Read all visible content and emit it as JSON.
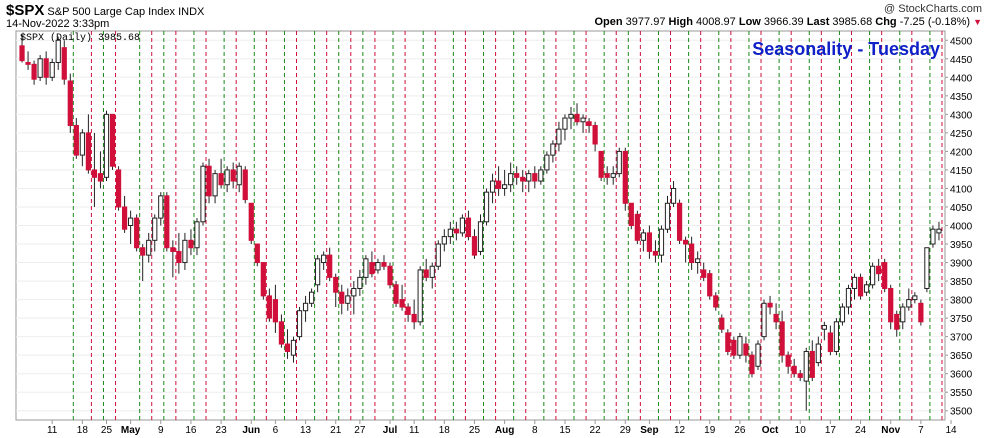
{
  "header": {
    "symbol": "$SPX",
    "name": "S&P 500 Large Cap Index",
    "exchange": "INDX",
    "datetime": "14-Nov-2022 3:33pm",
    "watermark": "@ StockCharts.com",
    "open_label": "Open",
    "open": "3977.97",
    "high_label": "High",
    "high": "4008.97",
    "low_label": "Low",
    "low": "3966.39",
    "last_label": "Last",
    "last": "3985.68",
    "chg_label": "Chg",
    "chg": "-7.25 (-0.18%)"
  },
  "colors": {
    "up_fill": "#ffffff",
    "down_fill": "#d0103a",
    "black_candle": "#000000",
    "green_line": "#1a8a1a",
    "red_line": "#d0103a",
    "title": "#1020c8"
  },
  "chart_data": {
    "type": "candlestick",
    "title": "Seasonality - Tuesday",
    "legend": "$SPX (Daily) 3985.68",
    "y_ticks": [
      3500,
      3550,
      3600,
      3650,
      3700,
      3750,
      3800,
      3850,
      3900,
      3950,
      4000,
      4050,
      4100,
      4150,
      4200,
      4250,
      4300,
      4350,
      4400,
      4450,
      4500
    ],
    "ylim": [
      3475,
      4525
    ],
    "x_tick_labels": [
      "11",
      "18",
      "25",
      "May",
      "9",
      "16",
      "23",
      "Jun",
      "6",
      "13",
      "21",
      "27",
      "Jul",
      "11",
      "18",
      "25",
      "Aug",
      "8",
      "15",
      "22",
      "29",
      "Sep",
      "12",
      "19",
      "26",
      "Oct",
      "10",
      "17",
      "24",
      "Nov",
      "7",
      "14"
    ],
    "x_tick_positions": [
      5,
      10,
      14,
      18,
      23,
      28,
      33,
      38,
      42,
      47,
      52,
      56,
      61,
      65,
      70,
      75,
      80,
      85,
      90,
      95,
      100,
      104,
      109,
      114,
      119,
      124,
      129,
      134,
      139,
      144,
      149,
      154
    ],
    "bold_labels": [
      "May",
      "Jun",
      "Jul",
      "Aug",
      "Sep",
      "Oct",
      "Nov"
    ],
    "grid": true,
    "green_dashed_at": [
      9,
      14,
      20,
      24,
      29,
      34,
      39,
      44,
      49,
      53,
      57,
      62,
      67,
      72,
      77,
      82,
      87,
      92,
      97,
      101,
      106,
      111,
      116,
      121,
      126,
      131,
      136,
      141,
      146,
      151
    ],
    "red_dashed_at": [
      12,
      16,
      22,
      26,
      31,
      36,
      41,
      46,
      51,
      55,
      59,
      64,
      69,
      74,
      79,
      84,
      89,
      94,
      99,
      103,
      108,
      113,
      118,
      123,
      128,
      133,
      138,
      143,
      148,
      153
    ],
    "candles": [
      {
        "o": 4485,
        "h": 4515,
        "l": 4440,
        "c": 4445
      },
      {
        "o": 4440,
        "h": 4470,
        "l": 4420,
        "c": 4435
      },
      {
        "o": 4435,
        "h": 4445,
        "l": 4380,
        "c": 4395
      },
      {
        "o": 4400,
        "h": 4460,
        "l": 4390,
        "c": 4450
      },
      {
        "o": 4450,
        "h": 4470,
        "l": 4380,
        "c": 4400
      },
      {
        "o": 4400,
        "h": 4450,
        "l": 4390,
        "c": 4440
      },
      {
        "o": 4440,
        "h": 4510,
        "l": 4420,
        "c": 4500
      },
      {
        "o": 4480,
        "h": 4500,
        "l": 4380,
        "c": 4395
      },
      {
        "o": 4390,
        "h": 4410,
        "l": 4250,
        "c": 4270
      },
      {
        "o": 4270,
        "h": 4290,
        "l": 4180,
        "c": 4190
      },
      {
        "o": 4190,
        "h": 4260,
        "l": 4160,
        "c": 4250
      },
      {
        "o": 4250,
        "h": 4300,
        "l": 4140,
        "c": 4150
      },
      {
        "o": 4150,
        "h": 4250,
        "l": 4050,
        "c": 4130
      },
      {
        "o": 4140,
        "h": 4200,
        "l": 4100,
        "c": 4120
      },
      {
        "o": 4130,
        "h": 4310,
        "l": 4120,
        "c": 4300
      },
      {
        "o": 4300,
        "h": 4300,
        "l": 4150,
        "c": 4160
      },
      {
        "o": 4150,
        "h": 4160,
        "l": 4040,
        "c": 4050
      },
      {
        "o": 4050,
        "h": 4080,
        "l": 3980,
        "c": 3990
      },
      {
        "o": 4000,
        "h": 4040,
        "l": 3950,
        "c": 4020
      },
      {
        "o": 4020,
        "h": 4030,
        "l": 3930,
        "c": 3940
      },
      {
        "o": 3940,
        "h": 3950,
        "l": 3850,
        "c": 3920
      },
      {
        "o": 3920,
        "h": 3980,
        "l": 3900,
        "c": 3960
      },
      {
        "o": 3960,
        "h": 4030,
        "l": 3930,
        "c": 4020
      },
      {
        "o": 4020,
        "h": 4090,
        "l": 4000,
        "c": 4080
      },
      {
        "o": 4080,
        "h": 4090,
        "l": 3930,
        "c": 3940
      },
      {
        "o": 3940,
        "h": 3960,
        "l": 3860,
        "c": 3930
      },
      {
        "o": 3930,
        "h": 3980,
        "l": 3870,
        "c": 3900
      },
      {
        "o": 3900,
        "h": 3980,
        "l": 3880,
        "c": 3960
      },
      {
        "o": 3960,
        "h": 3990,
        "l": 3920,
        "c": 3940
      },
      {
        "o": 3940,
        "h": 4020,
        "l": 3920,
        "c": 4010
      },
      {
        "o": 4010,
        "h": 4170,
        "l": 4000,
        "c": 4160
      },
      {
        "o": 4160,
        "h": 4180,
        "l": 4060,
        "c": 4080
      },
      {
        "o": 4080,
        "h": 4150,
        "l": 4060,
        "c": 4140
      },
      {
        "o": 4140,
        "h": 4180,
        "l": 4100,
        "c": 4110
      },
      {
        "o": 4110,
        "h": 4160,
        "l": 4090,
        "c": 4150
      },
      {
        "o": 4150,
        "h": 4170,
        "l": 4100,
        "c": 4120
      },
      {
        "o": 4110,
        "h": 4170,
        "l": 4090,
        "c": 4160
      },
      {
        "o": 4150,
        "h": 4160,
        "l": 4060,
        "c": 4070
      },
      {
        "o": 4060,
        "h": 4060,
        "l": 3950,
        "c": 3960
      },
      {
        "o": 3950,
        "h": 3950,
        "l": 3890,
        "c": 3900
      },
      {
        "o": 3900,
        "h": 3900,
        "l": 3800,
        "c": 3810
      },
      {
        "o": 3810,
        "h": 3830,
        "l": 3740,
        "c": 3750
      },
      {
        "o": 3800,
        "h": 3840,
        "l": 3710,
        "c": 3740
      },
      {
        "o": 3740,
        "h": 3760,
        "l": 3670,
        "c": 3680
      },
      {
        "o": 3680,
        "h": 3720,
        "l": 3640,
        "c": 3660
      },
      {
        "o": 3650,
        "h": 3700,
        "l": 3630,
        "c": 3690
      },
      {
        "o": 3700,
        "h": 3780,
        "l": 3690,
        "c": 3770
      },
      {
        "o": 3770,
        "h": 3810,
        "l": 3740,
        "c": 3790
      },
      {
        "o": 3790,
        "h": 3830,
        "l": 3780,
        "c": 3820
      },
      {
        "o": 3840,
        "h": 3920,
        "l": 3820,
        "c": 3910
      },
      {
        "o": 3900,
        "h": 3930,
        "l": 3880,
        "c": 3920
      },
      {
        "o": 3920,
        "h": 3940,
        "l": 3850,
        "c": 3860
      },
      {
        "o": 3860,
        "h": 3870,
        "l": 3780,
        "c": 3820
      },
      {
        "o": 3820,
        "h": 3840,
        "l": 3760,
        "c": 3790
      },
      {
        "o": 3790,
        "h": 3830,
        "l": 3770,
        "c": 3810
      },
      {
        "o": 3810,
        "h": 3850,
        "l": 3760,
        "c": 3830
      },
      {
        "o": 3830,
        "h": 3880,
        "l": 3810,
        "c": 3860
      },
      {
        "o": 3860,
        "h": 3920,
        "l": 3840,
        "c": 3910
      },
      {
        "o": 3900,
        "h": 3930,
        "l": 3860,
        "c": 3870
      },
      {
        "o": 3880,
        "h": 3910,
        "l": 3870,
        "c": 3900
      },
      {
        "o": 3900,
        "h": 3920,
        "l": 3880,
        "c": 3890
      },
      {
        "o": 3890,
        "h": 3900,
        "l": 3830,
        "c": 3840
      },
      {
        "o": 3840,
        "h": 3850,
        "l": 3780,
        "c": 3790
      },
      {
        "o": 3800,
        "h": 3840,
        "l": 3770,
        "c": 3780
      },
      {
        "o": 3780,
        "h": 3790,
        "l": 3740,
        "c": 3760
      },
      {
        "o": 3760,
        "h": 3800,
        "l": 3720,
        "c": 3740
      },
      {
        "o": 3740,
        "h": 3890,
        "l": 3730,
        "c": 3880
      },
      {
        "o": 3880,
        "h": 3910,
        "l": 3850,
        "c": 3860
      },
      {
        "o": 3860,
        "h": 3900,
        "l": 3830,
        "c": 3890
      },
      {
        "o": 3890,
        "h": 3960,
        "l": 3880,
        "c": 3950
      },
      {
        "o": 3950,
        "h": 3990,
        "l": 3930,
        "c": 3970
      },
      {
        "o": 3970,
        "h": 4010,
        "l": 3950,
        "c": 3990
      },
      {
        "o": 3990,
        "h": 4010,
        "l": 3960,
        "c": 3980
      },
      {
        "o": 3980,
        "h": 4030,
        "l": 3970,
        "c": 4020
      },
      {
        "o": 4020,
        "h": 4040,
        "l": 3960,
        "c": 3970
      },
      {
        "o": 3970,
        "h": 3990,
        "l": 3910,
        "c": 3920
      },
      {
        "o": 3930,
        "h": 4030,
        "l": 3920,
        "c": 4010
      },
      {
        "o": 4010,
        "h": 4100,
        "l": 4000,
        "c": 4090
      },
      {
        "o": 4090,
        "h": 4140,
        "l": 4060,
        "c": 4120
      },
      {
        "o": 4120,
        "h": 4160,
        "l": 4080,
        "c": 4100
      },
      {
        "o": 4100,
        "h": 4150,
        "l": 4080,
        "c": 4110
      },
      {
        "o": 4110,
        "h": 4170,
        "l": 4090,
        "c": 4140
      },
      {
        "o": 4140,
        "h": 4160,
        "l": 4110,
        "c": 4130
      },
      {
        "o": 4130,
        "h": 4150,
        "l": 4090,
        "c": 4120
      },
      {
        "o": 4120,
        "h": 4150,
        "l": 4090,
        "c": 4140
      },
      {
        "o": 4140,
        "h": 4160,
        "l": 4100,
        "c": 4120
      },
      {
        "o": 4120,
        "h": 4160,
        "l": 4110,
        "c": 4150
      },
      {
        "o": 4150,
        "h": 4200,
        "l": 4140,
        "c": 4190
      },
      {
        "o": 4190,
        "h": 4230,
        "l": 4170,
        "c": 4220
      },
      {
        "o": 4220,
        "h": 4280,
        "l": 4200,
        "c": 4260
      },
      {
        "o": 4260,
        "h": 4300,
        "l": 4230,
        "c": 4290
      },
      {
        "o": 4290,
        "h": 4320,
        "l": 4260,
        "c": 4300
      },
      {
        "o": 4300,
        "h": 4330,
        "l": 4270,
        "c": 4280
      },
      {
        "o": 4280,
        "h": 4300,
        "l": 4250,
        "c": 4290
      },
      {
        "o": 4280,
        "h": 4290,
        "l": 4250,
        "c": 4270
      },
      {
        "o": 4270,
        "h": 4280,
        "l": 4200,
        "c": 4220
      },
      {
        "o": 4200,
        "h": 4200,
        "l": 4120,
        "c": 4130
      },
      {
        "o": 4140,
        "h": 4160,
        "l": 4110,
        "c": 4130
      },
      {
        "o": 4130,
        "h": 4160,
        "l": 4110,
        "c": 4140
      },
      {
        "o": 4140,
        "h": 4210,
        "l": 4130,
        "c": 4200
      },
      {
        "o": 4200,
        "h": 4210,
        "l": 4040,
        "c": 4060
      },
      {
        "o": 4060,
        "h": 4060,
        "l": 3990,
        "c": 4000
      },
      {
        "o": 4030,
        "h": 4040,
        "l": 3950,
        "c": 3960
      },
      {
        "o": 3960,
        "h": 3990,
        "l": 3930,
        "c": 3980
      },
      {
        "o": 3980,
        "h": 4000,
        "l": 3910,
        "c": 3930
      },
      {
        "o": 3930,
        "h": 3960,
        "l": 3900,
        "c": 3920
      },
      {
        "o": 3920,
        "h": 4000,
        "l": 3900,
        "c": 3990
      },
      {
        "o": 3990,
        "h": 4080,
        "l": 3980,
        "c": 4060
      },
      {
        "o": 4060,
        "h": 4120,
        "l": 4050,
        "c": 4100
      },
      {
        "o": 4060,
        "h": 4070,
        "l": 3950,
        "c": 3960
      },
      {
        "o": 3960,
        "h": 3970,
        "l": 3900,
        "c": 3950
      },
      {
        "o": 3950,
        "h": 3970,
        "l": 3880,
        "c": 3900
      },
      {
        "o": 3900,
        "h": 3930,
        "l": 3870,
        "c": 3910
      },
      {
        "o": 3880,
        "h": 3900,
        "l": 3850,
        "c": 3860
      },
      {
        "o": 3870,
        "h": 3880,
        "l": 3800,
        "c": 3810
      },
      {
        "o": 3810,
        "h": 3820,
        "l": 3770,
        "c": 3780
      },
      {
        "o": 3750,
        "h": 3760,
        "l": 3710,
        "c": 3720
      },
      {
        "o": 3710,
        "h": 3720,
        "l": 3650,
        "c": 3660
      },
      {
        "o": 3690,
        "h": 3700,
        "l": 3640,
        "c": 3650
      },
      {
        "o": 3650,
        "h": 3710,
        "l": 3640,
        "c": 3700
      },
      {
        "o": 3680,
        "h": 3700,
        "l": 3630,
        "c": 3650
      },
      {
        "o": 3650,
        "h": 3660,
        "l": 3590,
        "c": 3600
      },
      {
        "o": 3620,
        "h": 3690,
        "l": 3610,
        "c": 3680
      },
      {
        "o": 3700,
        "h": 3800,
        "l": 3690,
        "c": 3790
      },
      {
        "o": 3790,
        "h": 3810,
        "l": 3760,
        "c": 3780
      },
      {
        "o": 3760,
        "h": 3790,
        "l": 3720,
        "c": 3740
      },
      {
        "o": 3740,
        "h": 3770,
        "l": 3630,
        "c": 3650
      },
      {
        "o": 3650,
        "h": 3660,
        "l": 3600,
        "c": 3620
      },
      {
        "o": 3620,
        "h": 3640,
        "l": 3590,
        "c": 3600
      },
      {
        "o": 3600,
        "h": 3610,
        "l": 3580,
        "c": 3590
      },
      {
        "o": 3580,
        "h": 3670,
        "l": 3500,
        "c": 3660
      },
      {
        "o": 3660,
        "h": 3690,
        "l": 3580,
        "c": 3590
      },
      {
        "o": 3630,
        "h": 3700,
        "l": 3620,
        "c": 3680
      },
      {
        "o": 3720,
        "h": 3740,
        "l": 3690,
        "c": 3730
      },
      {
        "o": 3710,
        "h": 3730,
        "l": 3650,
        "c": 3660
      },
      {
        "o": 3660,
        "h": 3750,
        "l": 3650,
        "c": 3740
      },
      {
        "o": 3740,
        "h": 3790,
        "l": 3730,
        "c": 3780
      },
      {
        "o": 3780,
        "h": 3840,
        "l": 3760,
        "c": 3830
      },
      {
        "o": 3830,
        "h": 3870,
        "l": 3800,
        "c": 3860
      },
      {
        "o": 3860,
        "h": 3870,
        "l": 3800,
        "c": 3810
      },
      {
        "o": 3820,
        "h": 3850,
        "l": 3810,
        "c": 3840
      },
      {
        "o": 3840,
        "h": 3900,
        "l": 3830,
        "c": 3890
      },
      {
        "o": 3890,
        "h": 3910,
        "l": 3850,
        "c": 3870
      },
      {
        "o": 3900,
        "h": 3910,
        "l": 3820,
        "c": 3830
      },
      {
        "o": 3830,
        "h": 3840,
        "l": 3720,
        "c": 3740
      },
      {
        "o": 3760,
        "h": 3770,
        "l": 3700,
        "c": 3720
      },
      {
        "o": 3740,
        "h": 3790,
        "l": 3720,
        "c": 3780
      },
      {
        "o": 3780,
        "h": 3830,
        "l": 3770,
        "c": 3800
      },
      {
        "o": 3800,
        "h": 3820,
        "l": 3790,
        "c": 3810
      },
      {
        "o": 3790,
        "h": 3800,
        "l": 3730,
        "c": 3740
      },
      {
        "o": 3830,
        "h": 3940,
        "l": 3820,
        "c": 3940
      },
      {
        "o": 3950,
        "h": 4000,
        "l": 3940,
        "c": 3990
      },
      {
        "o": 3980,
        "h": 4010,
        "l": 3960,
        "c": 3990
      }
    ]
  }
}
